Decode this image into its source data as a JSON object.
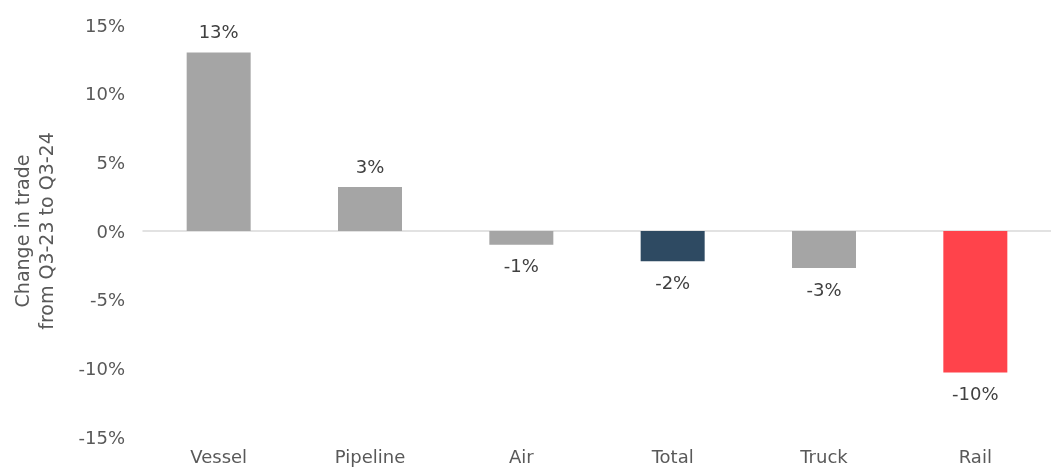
{
  "chart_data": {
    "type": "bar",
    "ylabel": "Change in trade from Q3-23 to Q3-24",
    "categories": [
      "Vessel",
      "Pipeline",
      "Air",
      "Total",
      "Truck",
      "Rail"
    ],
    "values": [
      13.0,
      3.2,
      -1.0,
      -2.2,
      -2.7,
      -10.3
    ],
    "colors": [
      "#a5a5a5",
      "#a5a5a5",
      "#a5a5a5",
      "#2e4a62",
      "#a5a5a5",
      "#ff434b"
    ],
    "value_labels": [
      "13%",
      "3%",
      "-1%",
      "-2%",
      "-3%",
      "-10%"
    ],
    "ylim": [
      -15,
      15
    ],
    "yticks": [
      {
        "value": -15,
        "label": "-15%"
      },
      {
        "value": -10,
        "label": "-10%"
      },
      {
        "value": -5,
        "label": "-5%"
      },
      {
        "value": 0,
        "label": "0%"
      },
      {
        "value": 5,
        "label": "5%"
      },
      {
        "value": 10,
        "label": "10%"
      },
      {
        "value": 15,
        "label": "15%"
      }
    ],
    "tick_labels": "xy"
  }
}
